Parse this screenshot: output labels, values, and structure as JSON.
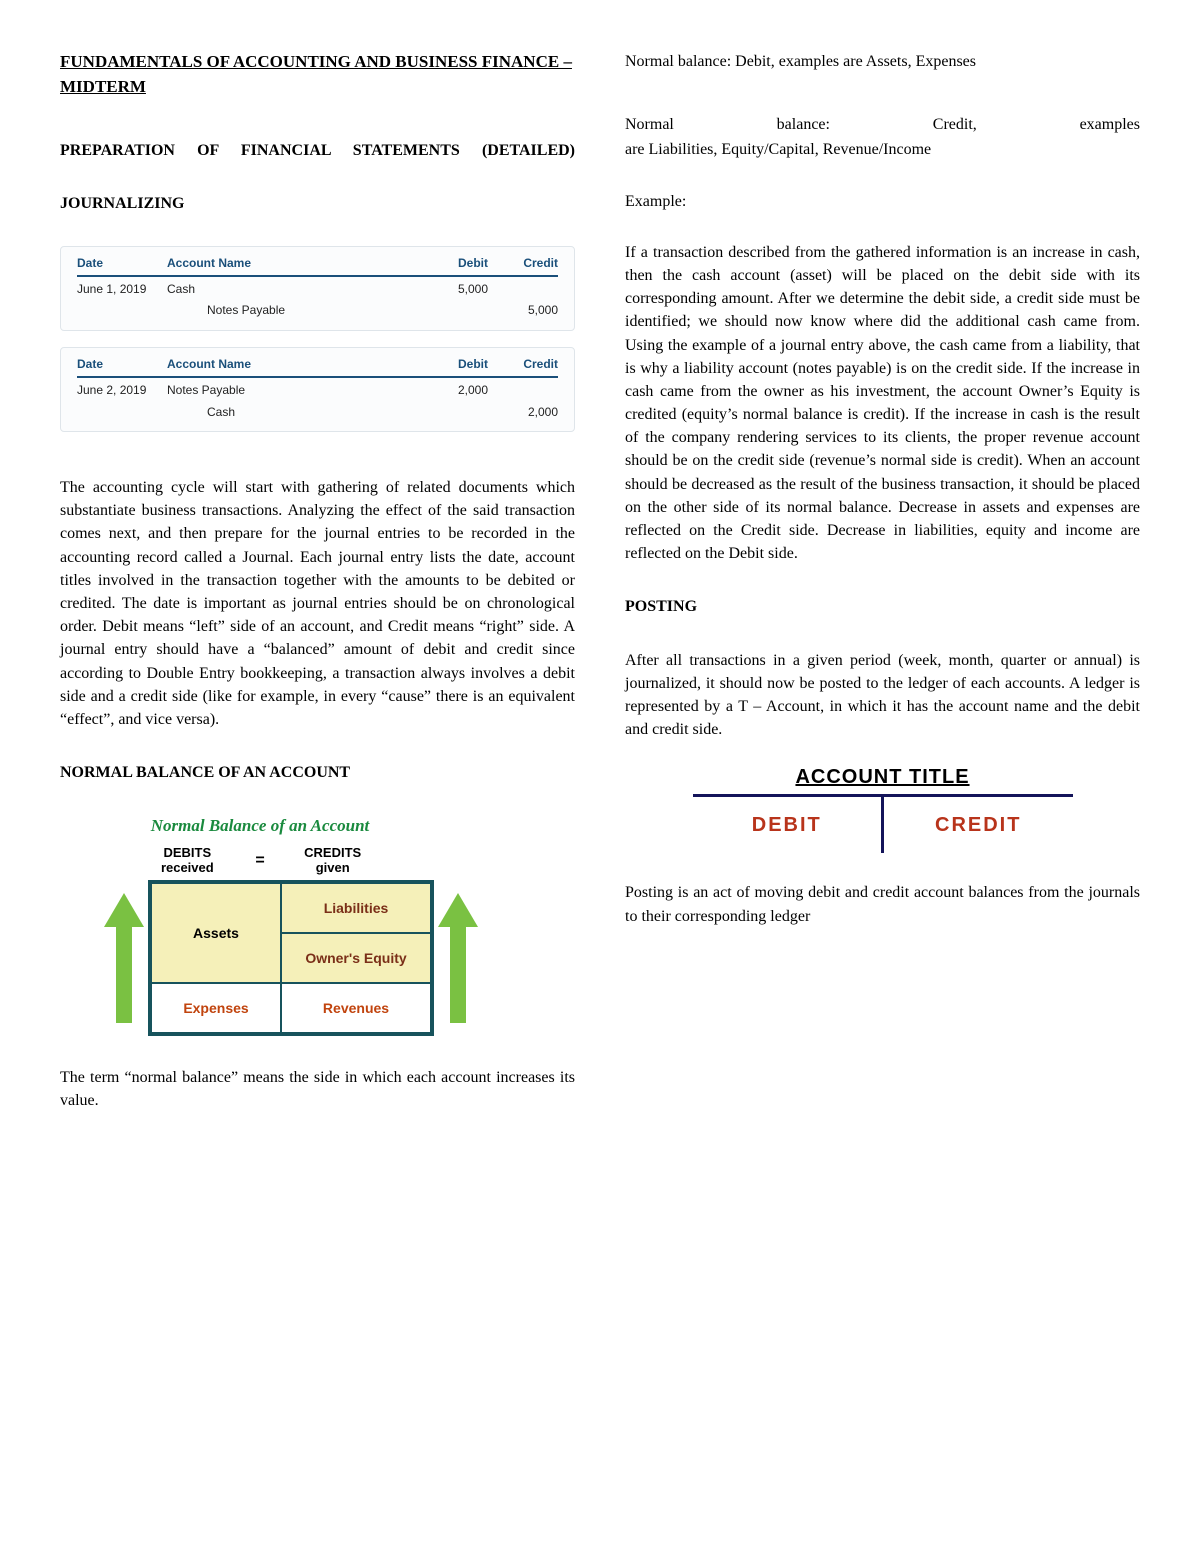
{
  "doc": {
    "title": "FUNDAMENTALS OF ACCOUNTING AND BUSINESS FINANCE – MIDTERM",
    "prep_heading": "PREPARATION OF FINANCIAL STATEMENTS (DETAILED)",
    "journalizing_heading": "JOURNALIZING",
    "normal_balance_heading": "NORMAL BALANCE OF AN ACCOUNT",
    "posting_heading": "POSTING",
    "body1": "The accounting cycle will start with gathering of related documents which substantiate business transactions. Analyzing the effect of the said transaction comes next, and then prepare for the journal entries to be recorded in the accounting record called a Journal. Each journal entry lists the date, account titles involved in the transaction together with the amounts to be debited or credited. The date is important as journal entries should be on chronological order. Debit means “left” side of an account, and Credit means “right” side. A journal entry should have a “balanced” amount of debit and credit since according to Double Entry bookkeeping, a transaction always involves a debit side and a credit side (like for example, in every “cause” there is an equivalent “effect”, and vice versa).",
    "normal_balance_intro": "The term “normal balance” means the side in which each account increases its value.",
    "nb_debit_line": "Normal balance: Debit, examples are Assets, Expenses",
    "nb_credit_line1": "Normal balance: Credit, examples",
    "nb_credit_line2": "are Liabilities, Equity/Capital, Revenue/Income",
    "example_label": "Example:",
    "example_body": "If a transaction described from the gathered information is an increase in cash, then the cash account (asset) will be placed on the debit side with its corresponding amount. After we determine the debit side, a credit side must be identified; we should now know where did the additional cash came from. Using the example of a journal entry above, the cash came from a liability, that is why a liability account (notes payable) is on the credit side. If the increase in cash came from the owner as his investment, the account Owner’s Equity is credited (equity’s normal balance is credit). If the increase in cash is the result of the company rendering services to its clients, the proper revenue account should be on the credit side (revenue’s normal side is credit). When an account should be decreased as the result of the business transaction, it should be placed on the other side of its normal balance. Decrease in assets and expenses are reflected on the Credit side. Decrease in liabilities, equity and income are reflected on the Debit side.",
    "posting_body1": "After all transactions in a given period (week, month, quarter or annual) is journalized, it should now be posted to the ledger of each accounts. A ledger is represented by a T – Account, in which it has the account name and the debit and credit side.",
    "posting_body2": "Posting is an act of moving debit and credit account balances from the journals to their corresponding ledger"
  },
  "journal_tables": {
    "headers": {
      "date": "Date",
      "acct": "Account Name",
      "debit": "Debit",
      "credit": "Credit"
    },
    "t1": {
      "date": "June 1, 2019",
      "r1": {
        "acct": "Cash",
        "debit": "5,000",
        "credit": ""
      },
      "r2": {
        "acct": "Notes Payable",
        "debit": "",
        "credit": "5,000"
      }
    },
    "t2": {
      "date": "June 2, 2019",
      "r1": {
        "acct": "Notes Payable",
        "debit": "2,000",
        "credit": ""
      },
      "r2": {
        "acct": "Cash",
        "debit": "",
        "credit": "2,000"
      }
    }
  },
  "nb_diagram": {
    "title": "Normal Balance of an Account",
    "debits_label": "DEBITS",
    "debits_sub": "received",
    "credits_label": "CREDITS",
    "credits_sub": "given",
    "eq": "=",
    "cells": {
      "assets": "Assets",
      "liabilities": "Liabilities",
      "owners_equity": "Owner's Equity",
      "expenses": "Expenses",
      "revenues": "Revenues"
    },
    "colors": {
      "title_color": "#1a8a3e",
      "grid_border": "#17535c",
      "fill_yellow": "#f5f0b9",
      "text_brown": "#7a2f18",
      "text_orange": "#c1440e",
      "arrow_green": "#7ac142"
    }
  },
  "t_account": {
    "title": "ACCOUNT TITLE",
    "debit": "DEBIT",
    "credit": "CREDIT",
    "line_color": "#14145a",
    "text_color": "#b8341b"
  }
}
